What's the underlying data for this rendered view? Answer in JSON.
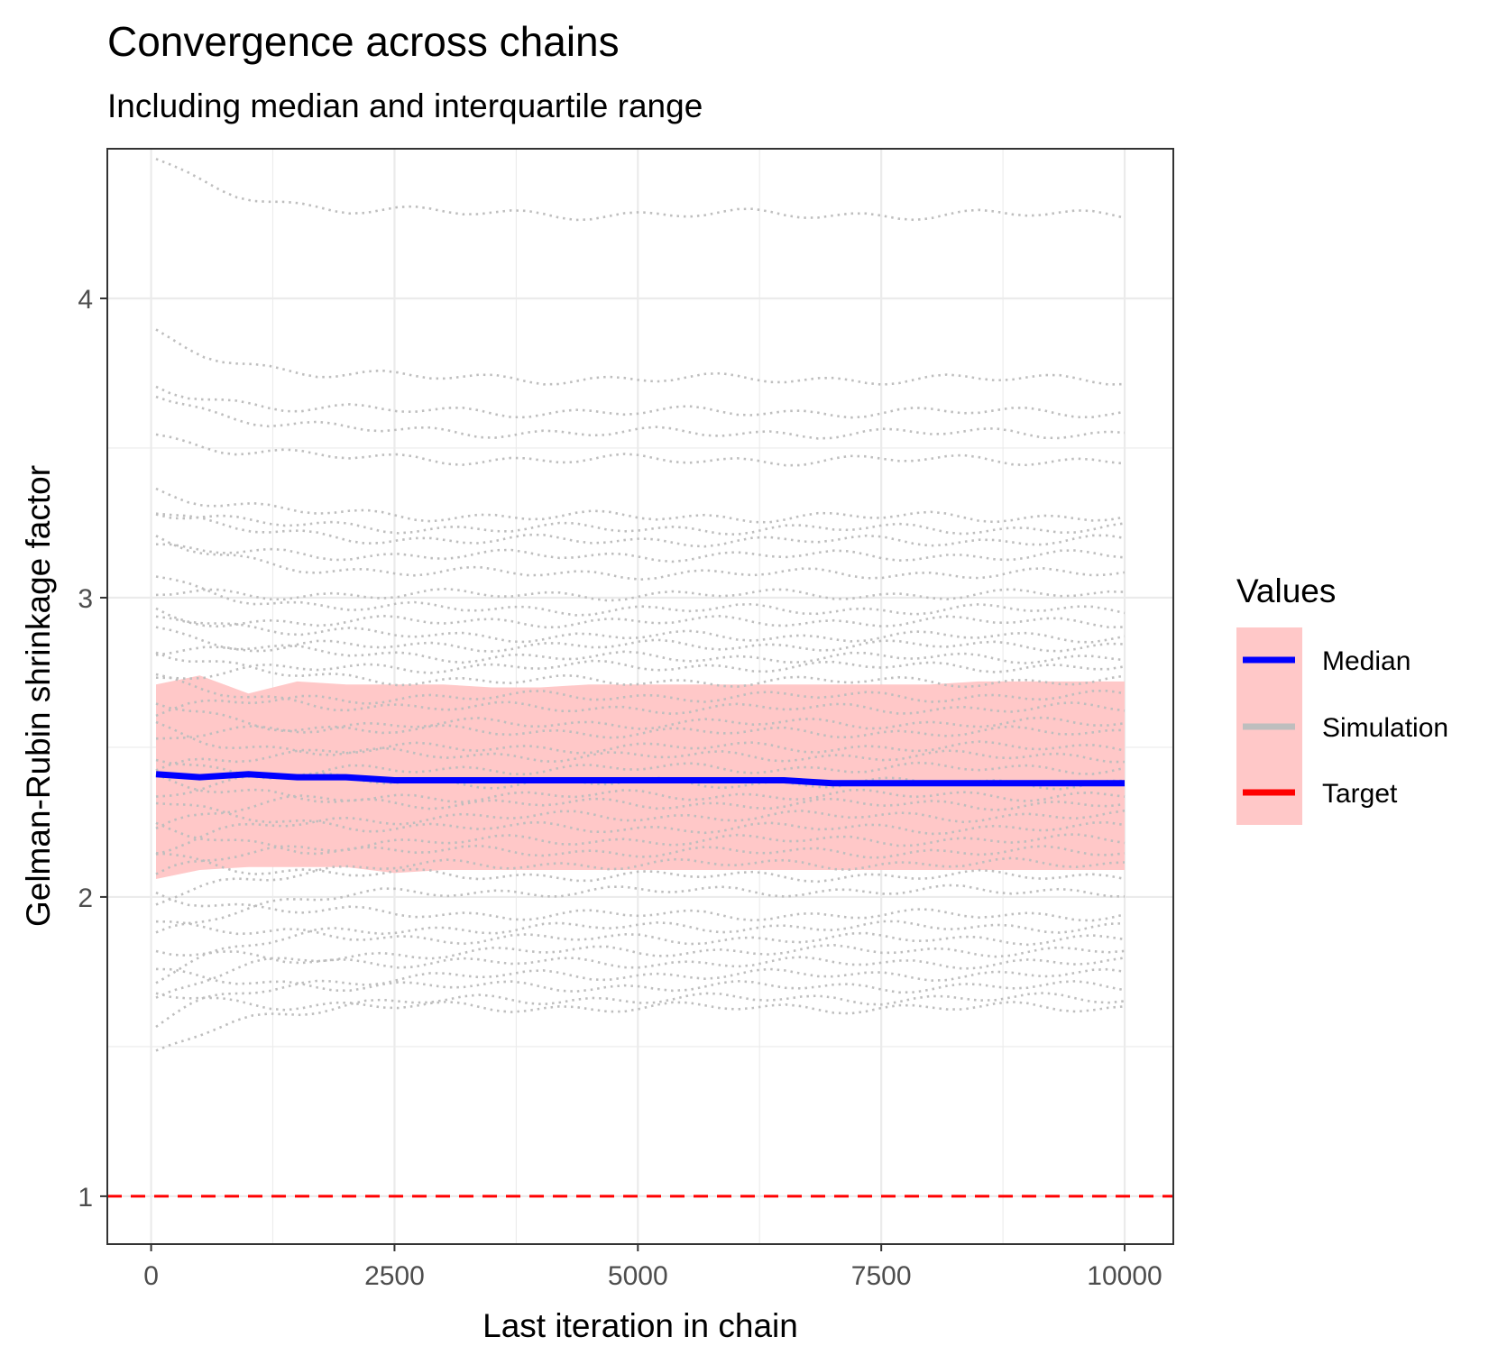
{
  "chart_data": {
    "type": "line",
    "title": "Convergence across chains",
    "subtitle": "Including median and interquartile range",
    "xlabel": "Last iteration in chain",
    "ylabel": "Gelman-Rubin shrinkage factor",
    "xlim": [
      -450,
      10500
    ],
    "ylim": [
      0.84,
      4.5
    ],
    "x_ticks": [
      0,
      2500,
      5000,
      7500,
      10000
    ],
    "x_tick_labels": [
      "0",
      "2500",
      "5000",
      "7500",
      "10000"
    ],
    "y_ticks": [
      1,
      2,
      3,
      4
    ],
    "y_tick_labels": [
      "1",
      "2",
      "3",
      "4"
    ],
    "grid": true,
    "colors": {
      "median": "#0000ff",
      "simulation": "#bebebe",
      "target": "#ff0000",
      "iqr_fill": "#ffc8c8",
      "panel_border": "#333333",
      "grid": "#ebebeb"
    },
    "legend": {
      "title": "Values",
      "position": "right",
      "entries": [
        {
          "label": "Median",
          "color": "#0000ff",
          "linetype": "solid"
        },
        {
          "label": "Simulation",
          "color": "#bebebe",
          "linetype": "solid"
        },
        {
          "label": "Target",
          "color": "#ff0000",
          "linetype": "solid"
        }
      ]
    },
    "target": 1,
    "x": [
      50,
      500,
      1000,
      1500,
      2000,
      2500,
      3000,
      3500,
      4000,
      4500,
      5000,
      5500,
      6000,
      6500,
      7000,
      7500,
      8000,
      8500,
      9000,
      9500,
      10000
    ],
    "median": [
      2.41,
      2.4,
      2.41,
      2.4,
      2.4,
      2.39,
      2.39,
      2.39,
      2.39,
      2.39,
      2.39,
      2.39,
      2.39,
      2.39,
      2.38,
      2.38,
      2.38,
      2.38,
      2.38,
      2.38,
      2.38
    ],
    "iqr_upper": [
      2.71,
      2.74,
      2.68,
      2.72,
      2.71,
      2.71,
      2.71,
      2.7,
      2.7,
      2.71,
      2.71,
      2.71,
      2.71,
      2.71,
      2.71,
      2.71,
      2.71,
      2.72,
      2.72,
      2.72,
      2.72
    ],
    "iqr_lower": [
      2.06,
      2.09,
      2.1,
      2.1,
      2.1,
      2.08,
      2.09,
      2.09,
      2.09,
      2.09,
      2.09,
      2.09,
      2.09,
      2.09,
      2.09,
      2.09,
      2.09,
      2.09,
      2.09,
      2.09,
      2.09
    ],
    "simulation_final_values": [
      4.28,
      3.73,
      3.62,
      3.55,
      3.46,
      3.27,
      3.23,
      3.19,
      3.14,
      3.08,
      3.01,
      2.96,
      2.92,
      2.87,
      2.84,
      2.8,
      2.77,
      2.72,
      2.67,
      2.63,
      2.58,
      2.55,
      2.5,
      2.47,
      2.43,
      2.38,
      2.34,
      2.31,
      2.27,
      2.23,
      2.19,
      2.15,
      2.11,
      2.07,
      2.02,
      1.94,
      1.9,
      1.86,
      1.82,
      1.78,
      1.74,
      1.7,
      1.66,
      1.63
    ]
  }
}
